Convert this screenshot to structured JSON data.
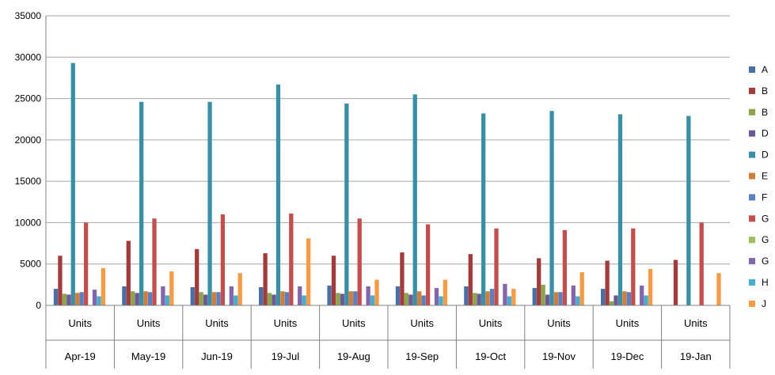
{
  "chart_data": {
    "type": "bar",
    "title": "",
    "xlabel": "",
    "ylabel": "",
    "ylim": [
      0,
      35000
    ],
    "yticks": [
      0,
      5000,
      10000,
      15000,
      20000,
      25000,
      30000,
      35000
    ],
    "grid": true,
    "legend_position": "right",
    "categories": [
      {
        "group": "Units",
        "month": "Apr-19"
      },
      {
        "group": "Units",
        "month": "May-19"
      },
      {
        "group": "Units",
        "month": "Jun-19"
      },
      {
        "group": "Units",
        "month": "19-Jul"
      },
      {
        "group": "Units",
        "month": "19-Aug"
      },
      {
        "group": "Units",
        "month": "19-Sep"
      },
      {
        "group": "Units",
        "month": "19-Oct"
      },
      {
        "group": "Units",
        "month": "19-Nov"
      },
      {
        "group": "Units",
        "month": "19-Dec"
      },
      {
        "group": "Units",
        "month": "19-Jan"
      }
    ],
    "series": [
      {
        "name": "A",
        "color": "#4a6fa5",
        "values": [
          2000,
          2300,
          2200,
          2200,
          2400,
          2300,
          2300,
          2100,
          2000,
          0
        ]
      },
      {
        "name": "B",
        "color": "#a23b3b",
        "values": [
          6000,
          7800,
          6800,
          6300,
          6000,
          6400,
          6200,
          5700,
          5400,
          5500
        ]
      },
      {
        "name": "B",
        "color": "#8aa54a",
        "values": [
          1400,
          1700,
          1600,
          1500,
          1500,
          1500,
          1500,
          2500,
          500,
          0
        ]
      },
      {
        "name": "D",
        "color": "#6e5896",
        "values": [
          1300,
          1500,
          1300,
          1300,
          1400,
          1300,
          1400,
          1300,
          1200,
          0
        ]
      },
      {
        "name": "D",
        "color": "#3b8fa5",
        "values": [
          29300,
          24600,
          24600,
          26700,
          24400,
          25500,
          23200,
          23500,
          23100,
          22900
        ]
      },
      {
        "name": "E",
        "color": "#d27d3a",
        "values": [
          1500,
          1700,
          1600,
          1700,
          1700,
          1700,
          1700,
          1600,
          1700,
          0
        ]
      },
      {
        "name": "F",
        "color": "#5b80c2",
        "values": [
          1600,
          1600,
          1600,
          1600,
          1700,
          1200,
          2000,
          1600,
          1600,
          0
        ]
      },
      {
        "name": "G",
        "color": "#c24e4e",
        "values": [
          10000,
          10500,
          11000,
          11100,
          10500,
          9800,
          9300,
          9100,
          9300,
          10000
        ]
      },
      {
        "name": "G",
        "color": "#9ebd5e",
        "values": [
          0,
          0,
          0,
          0,
          0,
          0,
          0,
          0,
          0,
          0
        ]
      },
      {
        "name": "G",
        "color": "#8467aa",
        "values": [
          1900,
          2300,
          2300,
          2300,
          2300,
          2100,
          2600,
          2400,
          2400,
          0
        ]
      },
      {
        "name": "H",
        "color": "#47aecf",
        "values": [
          1100,
          1200,
          1200,
          1200,
          1200,
          1100,
          1100,
          1100,
          1200,
          0
        ]
      },
      {
        "name": "J",
        "color": "#f59a45",
        "values": [
          4500,
          4100,
          3900,
          8100,
          3100,
          3100,
          2000,
          4000,
          4400,
          3900
        ]
      }
    ]
  }
}
